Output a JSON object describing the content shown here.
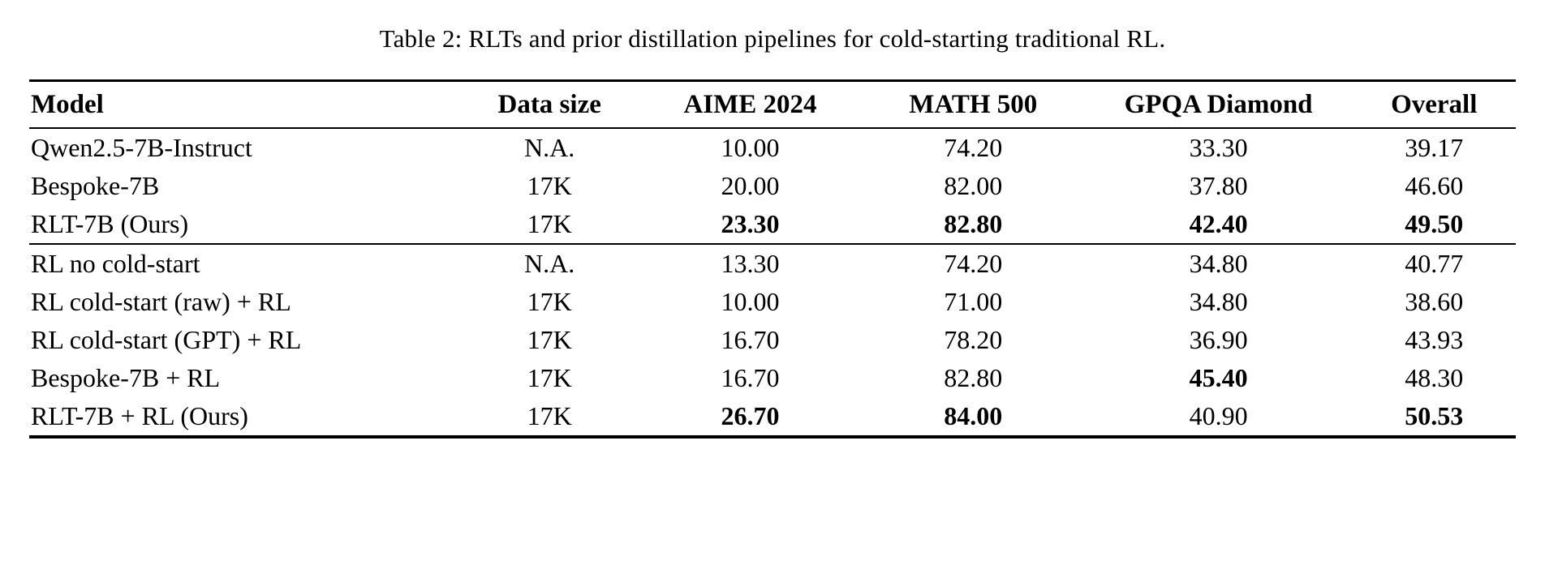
{
  "caption": "Table 2: RLTs and prior distillation pipelines for cold-starting traditional RL.",
  "table": {
    "columns": [
      "Model",
      "Data size",
      "AIME 2024",
      "MATH 500",
      "GPQA Diamond",
      "Overall"
    ],
    "rows": [
      {
        "cells": [
          "Qwen2.5-7B-Instruct",
          "N.A.",
          "10.00",
          "74.20",
          "33.30",
          "39.17"
        ],
        "bold_cells": []
      },
      {
        "cells": [
          "Bespoke-7B",
          "17K",
          "20.00",
          "82.00",
          "37.80",
          "46.60"
        ],
        "bold_cells": []
      },
      {
        "cells": [
          "RLT-7B (Ours)",
          "17K",
          "23.30",
          "82.80",
          "42.40",
          "49.50"
        ],
        "bold_cells": [
          2,
          3,
          4,
          5
        ]
      },
      {
        "cells": [
          "RL no cold-start",
          "N.A.",
          "13.30",
          "74.20",
          "34.80",
          "40.77"
        ],
        "bold_cells": []
      },
      {
        "cells": [
          "RL cold-start (raw) + RL",
          "17K",
          "10.00",
          "71.00",
          "34.80",
          "38.60"
        ],
        "bold_cells": []
      },
      {
        "cells": [
          "RL cold-start (GPT) + RL",
          "17K",
          "16.70",
          "78.20",
          "36.90",
          "43.93"
        ],
        "bold_cells": []
      },
      {
        "cells": [
          "Bespoke-7B + RL",
          "17K",
          "16.70",
          "82.80",
          "45.40",
          "48.30"
        ],
        "bold_cells": [
          4
        ]
      },
      {
        "cells": [
          "RLT-7B + RL (Ours)",
          "17K",
          "26.70",
          "84.00",
          "40.90",
          "50.53"
        ],
        "bold_cells": [
          2,
          3,
          5
        ]
      }
    ],
    "group_row_indices": [
      [
        0,
        1,
        2
      ],
      [
        3,
        4,
        5,
        6,
        7
      ]
    ]
  }
}
